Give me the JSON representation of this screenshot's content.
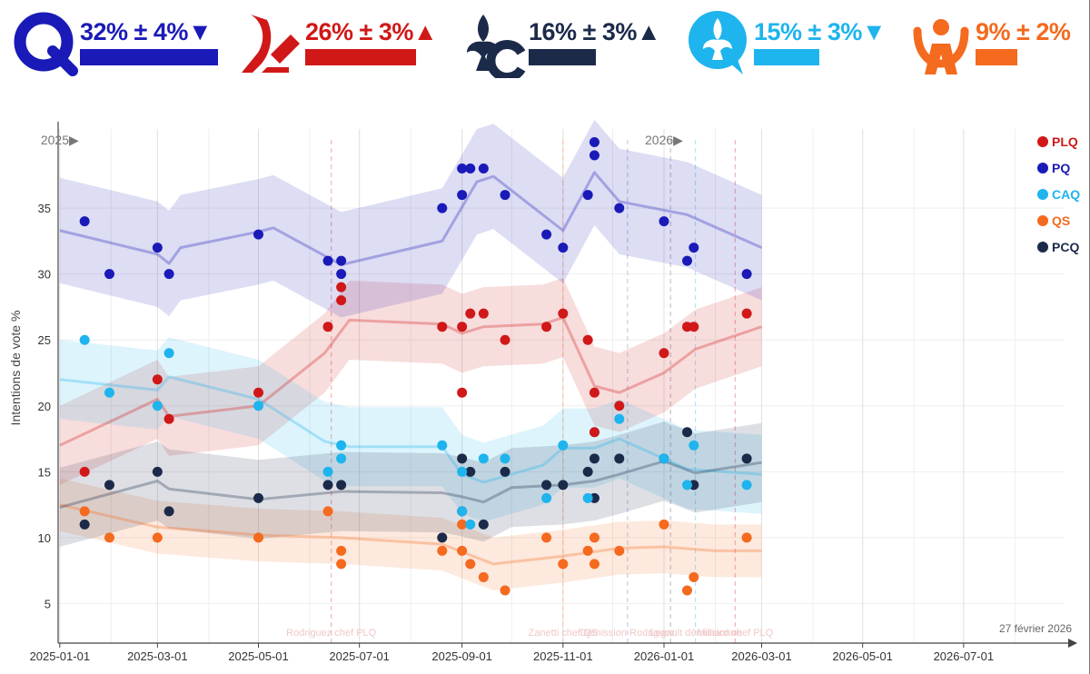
{
  "header": {
    "parties": [
      {
        "abbr": "PQ",
        "label": "32% ± 4%▼",
        "color": "#1a1ab8",
        "trend": "down",
        "icon": "pq-q-logo"
      },
      {
        "abbr": "PLQ",
        "label": "26% ± 3%▲",
        "color": "#d01818",
        "trend": "up",
        "icon": "plq-leaf-logo"
      },
      {
        "abbr": "PCQ",
        "label": "16% ± 3%▲",
        "color": "#1c2a4a",
        "trend": "up",
        "icon": "pcq-fleur-de-lis-logo"
      },
      {
        "abbr": "CAQ",
        "label": "15% ± 3%▼",
        "color": "#1eb4ee",
        "trend": "down",
        "icon": "caq-fleur-de-lis-bubble-logo"
      },
      {
        "abbr": "QS",
        "label": "9% ± 2%",
        "color": "#f46a1e",
        "trend": "flat",
        "icon": "qs-figure-logo"
      }
    ]
  },
  "chart_data": {
    "type": "scatter",
    "title": "",
    "xlabel": "",
    "ylabel": "Intentions de vote %",
    "ylim": [
      2,
      41
    ],
    "xlim": [
      "2024-12-31",
      "2026-08-31"
    ],
    "x_ticks": [
      "2025-01-01",
      "2025-03-01",
      "2025-05-01",
      "2025-07-01",
      "2025-09-01",
      "2025-11-01",
      "2026-01-01",
      "2026-03-01",
      "2026-05-01",
      "2026-07-01"
    ],
    "y_ticks": [
      5,
      10,
      15,
      20,
      25,
      30,
      35
    ],
    "year_markers": [
      {
        "label": "2025▶",
        "x": "2025-01-01"
      },
      {
        "label": "2026▶",
        "x": "2026-01-01"
      }
    ],
    "date_label": "27 février 2026",
    "grid": true,
    "legend_position": "top-right",
    "event_lines": [
      "2025-06-14",
      "2025-11-01",
      "2025-12-10",
      "2026-01-05",
      "2026-01-20",
      "2026-02-13"
    ],
    "event_labels": [
      {
        "text": "Rodriguez chef PLQ",
        "x": "2025-06-14"
      },
      {
        "text": "Zanetti chef QS",
        "x": "2025-11-01"
      },
      {
        "text": "Démission Rodriguez",
        "x": "2025-12-10"
      },
      {
        "text": "Legault démissionne",
        "x": "2026-01-20"
      },
      {
        "text": "Milliard chef PLQ",
        "x": "2026-02-13"
      }
    ],
    "series": [
      {
        "name": "PLQ",
        "color": "#d01818",
        "points": [
          [
            "2025-01-16",
            15
          ],
          [
            "2025-03-01",
            22
          ],
          [
            "2025-03-08",
            19
          ],
          [
            "2025-05-01",
            21
          ],
          [
            "2025-06-12",
            26
          ],
          [
            "2025-06-20",
            28
          ],
          [
            "2025-06-20",
            29
          ],
          [
            "2025-08-20",
            26
          ],
          [
            "2025-09-01",
            26
          ],
          [
            "2025-09-01",
            21
          ],
          [
            "2025-09-06",
            27
          ],
          [
            "2025-09-14",
            27
          ],
          [
            "2025-09-27",
            25
          ],
          [
            "2025-10-22",
            26
          ],
          [
            "2025-11-01",
            27
          ],
          [
            "2025-11-16",
            25
          ],
          [
            "2025-11-20",
            21
          ],
          [
            "2025-11-20",
            18
          ],
          [
            "2025-12-05",
            20
          ],
          [
            "2026-01-01",
            24
          ],
          [
            "2026-01-15",
            26
          ],
          [
            "2026-01-19",
            26
          ],
          [
            "2026-02-20",
            27
          ]
        ],
        "trend": [
          [
            "2025-01-01",
            17
          ],
          [
            "2025-03-01",
            20.5
          ],
          [
            "2025-03-08",
            19.2
          ],
          [
            "2025-05-01",
            20
          ],
          [
            "2025-06-10",
            24
          ],
          [
            "2025-06-25",
            26.5
          ],
          [
            "2025-08-20",
            26.2
          ],
          [
            "2025-09-01",
            25.5
          ],
          [
            "2025-09-14",
            26
          ],
          [
            "2025-10-20",
            26.2
          ],
          [
            "2025-11-01",
            26.7
          ],
          [
            "2025-11-20",
            21.5
          ],
          [
            "2025-12-05",
            21
          ],
          [
            "2026-01-01",
            22.5
          ],
          [
            "2026-01-20",
            24.3
          ],
          [
            "2026-03-01",
            26
          ]
        ],
        "band": 3
      },
      {
        "name": "PQ",
        "color": "#1a1ab8",
        "points": [
          [
            "2025-01-16",
            34
          ],
          [
            "2025-01-31",
            30
          ],
          [
            "2025-03-01",
            32
          ],
          [
            "2025-03-08",
            30
          ],
          [
            "2025-05-01",
            33
          ],
          [
            "2025-06-12",
            31
          ],
          [
            "2025-06-20",
            30
          ],
          [
            "2025-06-20",
            31
          ],
          [
            "2025-08-20",
            35
          ],
          [
            "2025-09-01",
            36
          ],
          [
            "2025-09-01",
            38
          ],
          [
            "2025-09-06",
            38
          ],
          [
            "2025-09-14",
            38
          ],
          [
            "2025-09-27",
            36
          ],
          [
            "2025-10-22",
            33
          ],
          [
            "2025-11-01",
            32
          ],
          [
            "2025-11-16",
            36
          ],
          [
            "2025-11-20",
            40
          ],
          [
            "2025-11-20",
            39
          ],
          [
            "2025-12-05",
            35
          ],
          [
            "2026-01-01",
            34
          ],
          [
            "2026-01-15",
            31
          ],
          [
            "2026-01-19",
            32
          ],
          [
            "2026-02-20",
            30
          ]
        ],
        "trend": [
          [
            "2025-01-01",
            33.3
          ],
          [
            "2025-03-01",
            31.5
          ],
          [
            "2025-03-08",
            30.8
          ],
          [
            "2025-03-15",
            32
          ],
          [
            "2025-05-01",
            33.2
          ],
          [
            "2025-05-10",
            33.5
          ],
          [
            "2025-06-20",
            30.7
          ],
          [
            "2025-08-20",
            32.5
          ],
          [
            "2025-09-10",
            37
          ],
          [
            "2025-09-20",
            37.4
          ],
          [
            "2025-11-01",
            33.3
          ],
          [
            "2025-11-20",
            37.7
          ],
          [
            "2025-12-05",
            35.5
          ],
          [
            "2026-01-15",
            34.5
          ],
          [
            "2026-03-01",
            32
          ]
        ],
        "band": 4
      },
      {
        "name": "CAQ",
        "color": "#1eb4ee",
        "points": [
          [
            "2025-01-16",
            25
          ],
          [
            "2025-01-31",
            21
          ],
          [
            "2025-03-01",
            20
          ],
          [
            "2025-03-08",
            24
          ],
          [
            "2025-05-01",
            20
          ],
          [
            "2025-06-12",
            15
          ],
          [
            "2025-06-20",
            17
          ],
          [
            "2025-06-20",
            16
          ],
          [
            "2025-08-20",
            17
          ],
          [
            "2025-09-01",
            15
          ],
          [
            "2025-09-01",
            12
          ],
          [
            "2025-09-06",
            11
          ],
          [
            "2025-09-14",
            16
          ],
          [
            "2025-09-27",
            16
          ],
          [
            "2025-10-22",
            13
          ],
          [
            "2025-11-01",
            17
          ],
          [
            "2025-11-16",
            13
          ],
          [
            "2025-11-20",
            18
          ],
          [
            "2025-12-05",
            19
          ],
          [
            "2026-01-01",
            16
          ],
          [
            "2026-01-15",
            14
          ],
          [
            "2026-01-19",
            17
          ],
          [
            "2026-02-20",
            14
          ]
        ],
        "trend": [
          [
            "2025-01-01",
            22
          ],
          [
            "2025-03-01",
            21.2
          ],
          [
            "2025-03-08",
            22.2
          ],
          [
            "2025-05-01",
            20.5
          ],
          [
            "2025-06-10",
            17.3
          ],
          [
            "2025-06-25",
            16.9
          ],
          [
            "2025-08-20",
            16.9
          ],
          [
            "2025-09-01",
            14.8
          ],
          [
            "2025-09-14",
            14.2
          ],
          [
            "2025-10-20",
            15.5
          ],
          [
            "2025-11-01",
            16.8
          ],
          [
            "2025-11-20",
            16.8
          ],
          [
            "2025-12-05",
            17.5
          ],
          [
            "2026-01-15",
            15.2
          ],
          [
            "2026-03-01",
            14.8
          ]
        ],
        "band": 3
      },
      {
        "name": "QS",
        "color": "#f46a1e",
        "points": [
          [
            "2025-01-16",
            12
          ],
          [
            "2025-01-31",
            10
          ],
          [
            "2025-03-01",
            10
          ],
          [
            "2025-05-01",
            10
          ],
          [
            "2025-06-12",
            12
          ],
          [
            "2025-06-20",
            9
          ],
          [
            "2025-06-20",
            8
          ],
          [
            "2025-08-20",
            9
          ],
          [
            "2025-09-01",
            9
          ],
          [
            "2025-09-01",
            11
          ],
          [
            "2025-09-06",
            8
          ],
          [
            "2025-09-14",
            7
          ],
          [
            "2025-09-27",
            6
          ],
          [
            "2025-10-22",
            10
          ],
          [
            "2025-11-01",
            8
          ],
          [
            "2025-11-16",
            9
          ],
          [
            "2025-11-20",
            10
          ],
          [
            "2025-11-20",
            8
          ],
          [
            "2025-12-05",
            9
          ],
          [
            "2026-01-01",
            11
          ],
          [
            "2026-01-15",
            6
          ],
          [
            "2026-01-19",
            7
          ],
          [
            "2026-02-20",
            10
          ]
        ],
        "trend": [
          [
            "2025-01-01",
            12.5
          ],
          [
            "2025-03-01",
            10.8
          ],
          [
            "2025-05-01",
            10.2
          ],
          [
            "2025-06-20",
            10
          ],
          [
            "2025-08-20",
            9.5
          ],
          [
            "2025-09-20",
            8
          ],
          [
            "2025-11-01",
            8.6
          ],
          [
            "2025-12-05",
            9.2
          ],
          [
            "2026-01-01",
            9.3
          ],
          [
            "2026-02-01",
            9
          ],
          [
            "2026-03-01",
            9
          ]
        ],
        "band": 2
      },
      {
        "name": "PCQ",
        "color": "#1c2a4a",
        "points": [
          [
            "2025-01-16",
            11
          ],
          [
            "2025-01-31",
            14
          ],
          [
            "2025-03-01",
            15
          ],
          [
            "2025-03-08",
            12
          ],
          [
            "2025-05-01",
            13
          ],
          [
            "2025-06-12",
            14
          ],
          [
            "2025-06-20",
            14
          ],
          [
            "2025-08-20",
            10
          ],
          [
            "2025-09-01",
            12
          ],
          [
            "2025-09-01",
            16
          ],
          [
            "2025-09-06",
            15
          ],
          [
            "2025-09-14",
            11
          ],
          [
            "2025-09-27",
            15
          ],
          [
            "2025-10-22",
            14
          ],
          [
            "2025-11-01",
            14
          ],
          [
            "2025-11-16",
            15
          ],
          [
            "2025-11-20",
            16
          ],
          [
            "2025-11-20",
            13
          ],
          [
            "2025-12-05",
            16
          ],
          [
            "2026-01-01",
            16
          ],
          [
            "2026-01-15",
            18
          ],
          [
            "2026-01-19",
            14
          ],
          [
            "2026-02-20",
            16
          ]
        ],
        "trend": [
          [
            "2025-01-01",
            12.3
          ],
          [
            "2025-03-01",
            14.3
          ],
          [
            "2025-03-08",
            13.7
          ],
          [
            "2025-05-01",
            12.9
          ],
          [
            "2025-06-20",
            13.5
          ],
          [
            "2025-08-20",
            13.4
          ],
          [
            "2025-09-01",
            13.1
          ],
          [
            "2025-09-14",
            12.7
          ],
          [
            "2025-10-01",
            13.8
          ],
          [
            "2025-11-01",
            14
          ],
          [
            "2025-11-20",
            14.3
          ],
          [
            "2025-12-05",
            14.8
          ],
          [
            "2026-01-01",
            15.8
          ],
          [
            "2026-01-20",
            14.9
          ],
          [
            "2026-03-01",
            15.7
          ]
        ],
        "band": 3
      }
    ]
  }
}
